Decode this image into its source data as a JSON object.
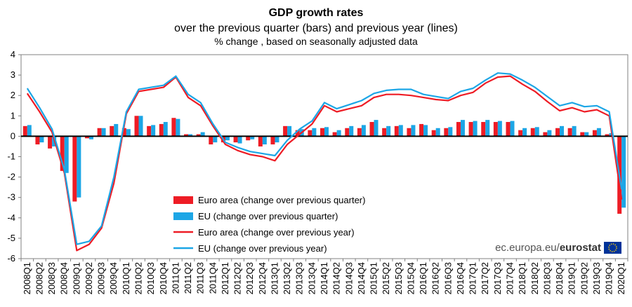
{
  "chart_data": {
    "type": "bar",
    "title": "GDP growth rates",
    "subtitle": "over the previous quarter (bars) and previous year (lines)",
    "subtitle2": "% change , based on seasonally adjusted data",
    "source_text": "ec.europa.eu/",
    "source_brand": "eurostat",
    "ylim": [
      -6,
      4
    ],
    "yticks": [
      "4",
      "3",
      "2",
      "1",
      "0",
      "-1",
      "-2",
      "-3",
      "-4",
      "-5",
      "-6"
    ],
    "categories": [
      "2008Q1",
      "2008Q2",
      "2008Q3",
      "2008Q4",
      "2009Q1",
      "2009Q2",
      "2009Q3",
      "2009Q4",
      "2010Q1",
      "2010Q2",
      "2010Q3",
      "2010Q4",
      "2011Q1",
      "2011Q2",
      "2011Q3",
      "2011Q4",
      "2012Q1",
      "2012Q2",
      "2012Q3",
      "2012Q4",
      "2013Q1",
      "2013Q2",
      "2013Q3",
      "2013Q4",
      "2014Q1",
      "2014Q2",
      "2014Q3",
      "2014Q4",
      "2015Q1",
      "2015Q2",
      "2015Q3",
      "2015Q4",
      "2016Q1",
      "2016Q2",
      "2016Q3",
      "2016Q4",
      "2017Q1",
      "2017Q2",
      "2017Q3",
      "2017Q4",
      "2018Q1",
      "2018Q2",
      "2018Q3",
      "2018Q4",
      "2019Q1",
      "2019Q2",
      "2019Q3",
      "2019Q4",
      "2020Q1"
    ],
    "series": [
      {
        "name": "Euro area (change over previous quarter)",
        "kind": "bar",
        "color": "#ee1c25",
        "values": [
          0.5,
          -0.4,
          -0.6,
          -1.7,
          -3.2,
          -0.1,
          0.4,
          0.5,
          0.4,
          1.0,
          0.5,
          0.6,
          0.9,
          0.1,
          0.1,
          -0.4,
          -0.3,
          -0.3,
          -0.2,
          -0.5,
          -0.4,
          0.5,
          0.3,
          0.3,
          0.4,
          0.2,
          0.4,
          0.4,
          0.7,
          0.4,
          0.5,
          0.4,
          0.6,
          0.3,
          0.4,
          0.7,
          0.7,
          0.7,
          0.7,
          0.7,
          0.3,
          0.4,
          0.2,
          0.4,
          0.4,
          0.2,
          0.3,
          0.1,
          -3.8
        ]
      },
      {
        "name": "EU (change over previous quarter)",
        "kind": "bar",
        "color": "#1ca6e6",
        "values": [
          0.55,
          -0.3,
          -0.5,
          -1.8,
          -3.0,
          -0.15,
          0.4,
          0.6,
          0.35,
          1.0,
          0.55,
          0.7,
          0.85,
          0.1,
          0.2,
          -0.3,
          -0.2,
          -0.35,
          -0.15,
          -0.4,
          -0.3,
          0.5,
          0.35,
          0.4,
          0.45,
          0.3,
          0.5,
          0.55,
          0.8,
          0.5,
          0.55,
          0.55,
          0.55,
          0.4,
          0.45,
          0.8,
          0.75,
          0.8,
          0.75,
          0.75,
          0.4,
          0.45,
          0.3,
          0.5,
          0.5,
          0.2,
          0.4,
          0.15,
          -3.5
        ]
      },
      {
        "name": "Euro area (change over previous year)",
        "kind": "line",
        "color": "#ee1c25",
        "values": [
          2.1,
          1.2,
          0.2,
          -1.8,
          -5.6,
          -5.3,
          -4.5,
          -2.3,
          1.1,
          2.2,
          2.3,
          2.4,
          2.9,
          1.9,
          1.5,
          0.5,
          -0.4,
          -0.7,
          -0.9,
          -1.0,
          -1.2,
          -0.4,
          0.1,
          0.6,
          1.5,
          1.2,
          1.35,
          1.5,
          1.9,
          2.05,
          2.05,
          2.0,
          1.9,
          1.8,
          1.75,
          2.0,
          2.15,
          2.6,
          2.9,
          2.95,
          2.55,
          2.2,
          1.7,
          1.25,
          1.4,
          1.2,
          1.3,
          1.0,
          -3.1
        ]
      },
      {
        "name": "EU (change over previous year)",
        "kind": "line",
        "color": "#1ca6e6",
        "values": [
          2.35,
          1.4,
          0.35,
          -1.65,
          -5.3,
          -5.15,
          -4.4,
          -2.0,
          1.2,
          2.3,
          2.4,
          2.5,
          2.95,
          2.05,
          1.65,
          0.6,
          -0.3,
          -0.55,
          -0.75,
          -0.85,
          -0.95,
          -0.2,
          0.35,
          0.75,
          1.65,
          1.35,
          1.55,
          1.75,
          2.1,
          2.25,
          2.3,
          2.3,
          2.05,
          1.95,
          1.85,
          2.2,
          2.35,
          2.75,
          3.1,
          3.05,
          2.75,
          2.4,
          1.95,
          1.5,
          1.65,
          1.45,
          1.5,
          1.2,
          -2.6
        ]
      }
    ],
    "legend": [
      {
        "label": "Euro area (change over previous quarter)",
        "type": "bar",
        "color": "#ee1c25"
      },
      {
        "label": "EU (change over previous quarter)",
        "type": "bar",
        "color": "#1ca6e6"
      },
      {
        "label": "Euro area (change over previous year)",
        "type": "line",
        "color": "#ee1c25"
      },
      {
        "label": "EU (change over previous year)",
        "type": "line",
        "color": "#1ca6e6"
      }
    ]
  }
}
